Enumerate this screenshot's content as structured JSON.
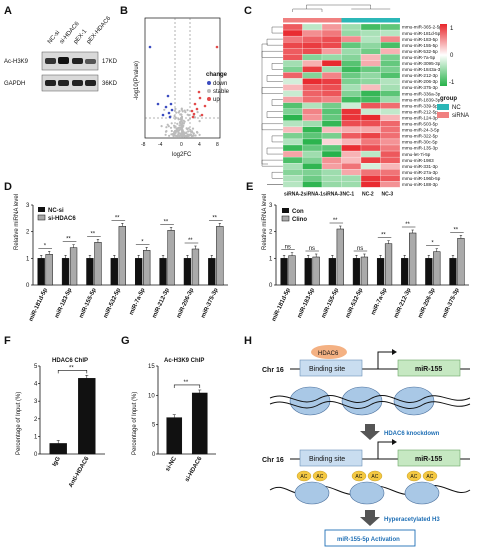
{
  "panels": {
    "A": "A",
    "B": "B",
    "C": "C",
    "D": "D",
    "E": "E",
    "F": "F",
    "G": "G",
    "H": "H"
  },
  "panelA": {
    "lanes": [
      "NC-si",
      "si-HDAC6",
      "pEX-1",
      "pEX-HDAC6"
    ],
    "rows": [
      {
        "name": "Ac-H3K9",
        "size": "17KD"
      },
      {
        "name": "GAPDH",
        "size": "36KD"
      }
    ]
  },
  "panelB": {
    "xlabel": "log2FC",
    "ylabel": "-log10(Pvalue)",
    "legend_title": "change",
    "legend": [
      {
        "label": "down",
        "color": "#3b4cc0"
      },
      {
        "label": "stable",
        "color": "#bbbbbb"
      },
      {
        "label": "up",
        "color": "#e34a4a"
      }
    ],
    "xticks": [
      "-8",
      "-4",
      "0",
      "4",
      "8"
    ]
  },
  "panelC": {
    "columns": [
      "siRNA-2",
      "siRNA-1",
      "siRNA-3",
      "NC-1",
      "NC-2",
      "NC-3"
    ],
    "rows": [
      "mmu-miR-365-2-5p",
      "mmu-miR-181d-5p",
      "mmu-miR-183-5p",
      "mmu-miR-155-5p",
      "mmu-miR-532-5p",
      "mmu-miR-7a-5p",
      "mmu-miR-3095-3p",
      "mmu-miR-1843a-3p",
      "mmu-miR-212-3p",
      "mmu-miR-206-3p",
      "mmu-miR-375-3p",
      "mmu-miR-336a-3p",
      "mmu-miR-1839-3p",
      "mmu-miR-339-5p",
      "mmu-miR-212-5p",
      "mmu-miR-124-3p",
      "mmu-miR-503-5p",
      "mmu-miR-24-3-5p",
      "mmu-miR-322-5p",
      "mmu-miR-30c-5p",
      "mmu-miR-135-3p",
      "mmu-let-7i-5p",
      "mmu-miR-1983",
      "mmu-miR-331-3p",
      "mmu-miR-27a-3p",
      "mmu-miR-196b-5p",
      "mmu-miR-188-3p"
    ],
    "scale_ticks": [
      "1",
      "0",
      "-1"
    ],
    "legend_title": "group",
    "legend": [
      {
        "label": "NC",
        "color": "#2bb7b7"
      },
      {
        "label": "siRNA",
        "color": "#f08080"
      }
    ]
  },
  "chart_data": [
    {
      "panel": "D",
      "type": "bar",
      "ylabel": "Relative miRNA level",
      "ylim": [
        0,
        3
      ],
      "categories": [
        "miR-181d-5p",
        "miR-183-5p",
        "miR-155-5p",
        "miR-532-5p",
        "miR-7a-5p",
        "miR-212-3p",
        "miR-206-3p",
        "miR-375-3p"
      ],
      "series": [
        {
          "name": "NC-si",
          "color": "#111111",
          "values": [
            1.0,
            1.0,
            1.0,
            1.0,
            1.0,
            1.0,
            1.0,
            1.0
          ]
        },
        {
          "name": "si-HDAC6",
          "color": "#aaaaaa",
          "values": [
            1.15,
            1.4,
            1.6,
            2.2,
            1.3,
            2.05,
            1.35,
            2.2
          ]
        }
      ],
      "significance": [
        "*",
        "**",
        "**",
        "**",
        "*",
        "**",
        "**",
        "**"
      ]
    },
    {
      "panel": "E",
      "type": "bar",
      "ylabel": "Relative miRNA level",
      "ylim": [
        0,
        3
      ],
      "categories": [
        "miR-181d-5p",
        "miR-183-5p",
        "miR-155-5p",
        "miR-532-5p",
        "miR-7a-5p",
        "miR-212-3p",
        "miR-206-3p",
        "miR-375-3p"
      ],
      "series": [
        {
          "name": "Con",
          "color": "#111111",
          "values": [
            1.0,
            1.0,
            1.0,
            1.0,
            1.0,
            1.0,
            1.0,
            1.0
          ]
        },
        {
          "name": "Clino",
          "color": "#aaaaaa",
          "values": [
            1.1,
            1.05,
            2.1,
            1.05,
            1.55,
            1.95,
            1.25,
            1.75
          ]
        }
      ],
      "significance": [
        "ns",
        "ns",
        "**",
        "ns",
        "**",
        "**",
        "*",
        "**"
      ]
    },
    {
      "panel": "F",
      "type": "bar",
      "title": "HDAC6 ChIP",
      "ylabel": "Percentage of Input (%)",
      "ylim": [
        0,
        5
      ],
      "categories": [
        "IgG",
        "Anti-HDAC6"
      ],
      "values": [
        0.6,
        4.3
      ],
      "significance": "**"
    },
    {
      "panel": "G",
      "type": "bar",
      "title": "Ac-H3K9 ChIP",
      "ylabel": "Percentage of Input (%)",
      "ylim": [
        0,
        15
      ],
      "categories": [
        "si-NC",
        "si-HDAC6"
      ],
      "values": [
        6.2,
        10.4
      ],
      "significance": "**"
    }
  ],
  "panelH": {
    "chr": "Chr 16",
    "hdac6": "HDAC6",
    "binding": "Binding site",
    "gene": "miR-155",
    "step1": "HDAC6 knockdown",
    "step2": "Hyperacetylated H3",
    "final": "miR-155-5p Activation",
    "ac": "AC"
  }
}
